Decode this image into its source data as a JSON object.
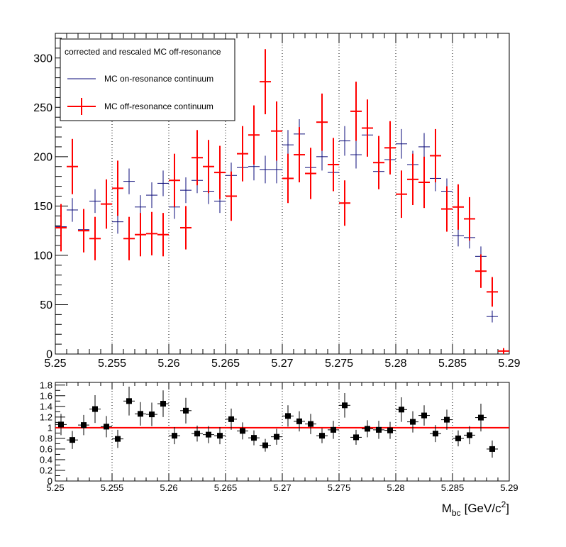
{
  "chart_data": [
    {
      "type": "scatter",
      "panel": "main",
      "legend_title": "corrected and rescaled MC off-resonance",
      "legend_placement": "top-left",
      "xlim": [
        5.25,
        5.29
      ],
      "ylim": [
        0,
        325
      ],
      "x_ticks": [
        "5.25",
        "5.255",
        "5.26",
        "5.265",
        "5.27",
        "5.275",
        "5.28",
        "5.285",
        "5.29"
      ],
      "y_ticks": [
        "0",
        "50",
        "100",
        "150",
        "200",
        "250",
        "300"
      ],
      "vertical_dotted_gridlines_at": [
        5.255,
        5.26,
        5.265,
        5.27,
        5.275,
        5.28,
        5.285
      ],
      "bin_width": 0.001,
      "series": [
        {
          "name": "MC on-resonance continuum",
          "color": "#0a0a78",
          "style": "points-with-errorbars",
          "x": [
            5.2505,
            5.2515,
            5.2525,
            5.2535,
            5.2545,
            5.2555,
            5.2565,
            5.2575,
            5.2585,
            5.2595,
            5.2605,
            5.2615,
            5.2625,
            5.2635,
            5.2645,
            5.2655,
            5.2665,
            5.2675,
            5.2685,
            5.2695,
            5.2705,
            5.2715,
            5.2725,
            5.2735,
            5.2745,
            5.2755,
            5.2765,
            5.2775,
            5.2785,
            5.2795,
            5.2805,
            5.2815,
            5.2825,
            5.2835,
            5.2845,
            5.2855,
            5.2865,
            5.2875,
            5.2885
          ],
          "y": [
            129,
            146,
            126,
            155,
            152,
            134,
            175,
            149,
            161,
            173,
            149,
            166,
            176,
            165,
            155,
            181,
            189,
            190,
            187,
            187,
            212,
            223,
            189,
            200,
            184,
            216,
            202,
            222,
            185,
            197,
            213,
            192,
            210,
            178,
            165,
            120,
            118,
            99,
            38
          ],
          "err": [
            11,
            12,
            11,
            12,
            12,
            12,
            13,
            12,
            13,
            13,
            12,
            13,
            13,
            13,
            12,
            13,
            14,
            14,
            14,
            14,
            15,
            15,
            14,
            14,
            14,
            15,
            14,
            15,
            14,
            14,
            15,
            14,
            14,
            13,
            13,
            11,
            11,
            10,
            6
          ]
        },
        {
          "name": "MC off-resonance continuum",
          "color": "#ff0000",
          "style": "points-with-errorbars",
          "x": [
            5.2505,
            5.2515,
            5.2525,
            5.2535,
            5.2545,
            5.2555,
            5.2565,
            5.2575,
            5.2585,
            5.2595,
            5.2605,
            5.2615,
            5.2625,
            5.2635,
            5.2645,
            5.2655,
            5.2665,
            5.2675,
            5.2685,
            5.2695,
            5.2705,
            5.2715,
            5.2725,
            5.2735,
            5.2745,
            5.2755,
            5.2765,
            5.2775,
            5.2785,
            5.2795,
            5.2805,
            5.2815,
            5.2825,
            5.2835,
            5.2845,
            5.2855,
            5.2865,
            5.2875,
            5.2885,
            5.2895
          ],
          "y": [
            128,
            190,
            125,
            117,
            152,
            168,
            117,
            121,
            122,
            121,
            176,
            128,
            199,
            190,
            184,
            160,
            203,
            222,
            276,
            226,
            178,
            202,
            183,
            235,
            192,
            153,
            246,
            229,
            194,
            209,
            162,
            177,
            174,
            201,
            147,
            149,
            137,
            84,
            63,
            3
          ],
          "err": [
            24,
            28,
            22,
            22,
            25,
            28,
            22,
            22,
            22,
            22,
            27,
            22,
            28,
            27,
            27,
            25,
            28,
            30,
            33,
            30,
            25,
            28,
            26,
            29,
            27,
            23,
            30,
            29,
            27,
            27,
            24,
            26,
            26,
            27,
            23,
            23,
            22,
            17,
            15,
            3
          ]
        }
      ]
    },
    {
      "type": "scatter",
      "panel": "ratio",
      "xlim": [
        5.25,
        5.29
      ],
      "ylim": [
        0,
        1.85
      ],
      "xlabel": "M",
      "xlabel_sub": "bc",
      "xlabel_unit": "[GeV/c",
      "xlabel_sup": "2",
      "xlabel_close": "]",
      "x_ticks": [
        "5.25",
        "5.255",
        "5.26",
        "5.265",
        "5.27",
        "5.275",
        "5.28",
        "5.285",
        "5.29"
      ],
      "y_ticks": [
        "0",
        "0.2",
        "0.4",
        "0.6",
        "0.8",
        "1",
        "1.2",
        "1.4",
        "1.6",
        "1.8"
      ],
      "reference_line": {
        "y": 1,
        "color": "#ff0000"
      },
      "series": [
        {
          "color": "#000000",
          "marker": "square",
          "x": [
            5.2505,
            5.2515,
            5.2525,
            5.2535,
            5.2545,
            5.2555,
            5.2565,
            5.2575,
            5.2585,
            5.2595,
            5.2605,
            5.2615,
            5.2625,
            5.2635,
            5.2645,
            5.2655,
            5.2665,
            5.2675,
            5.2685,
            5.2695,
            5.2705,
            5.2715,
            5.2725,
            5.2735,
            5.2745,
            5.2755,
            5.2765,
            5.2775,
            5.2785,
            5.2795,
            5.2805,
            5.2815,
            5.2825,
            5.2835,
            5.2845,
            5.2855,
            5.2865,
            5.2875,
            5.2885
          ],
          "y": [
            1.06,
            0.77,
            1.05,
            1.35,
            1.02,
            0.79,
            1.5,
            1.26,
            1.25,
            1.45,
            0.85,
            1.32,
            0.89,
            0.87,
            0.85,
            1.16,
            0.94,
            0.81,
            0.67,
            0.83,
            1.22,
            1.12,
            1.07,
            0.85,
            0.96,
            1.42,
            0.82,
            0.98,
            0.96,
            0.95,
            1.34,
            1.11,
            1.23,
            0.89,
            1.15,
            0.8,
            0.86,
            1.19,
            0.6
          ],
          "err": [
            0.2,
            0.17,
            0.19,
            0.26,
            0.2,
            0.17,
            0.27,
            0.22,
            0.22,
            0.25,
            0.16,
            0.24,
            0.15,
            0.16,
            0.16,
            0.2,
            0.16,
            0.14,
            0.12,
            0.15,
            0.2,
            0.19,
            0.19,
            0.14,
            0.17,
            0.23,
            0.14,
            0.16,
            0.17,
            0.16,
            0.23,
            0.2,
            0.19,
            0.16,
            0.19,
            0.15,
            0.17,
            0.26,
            0.16
          ]
        }
      ]
    }
  ]
}
